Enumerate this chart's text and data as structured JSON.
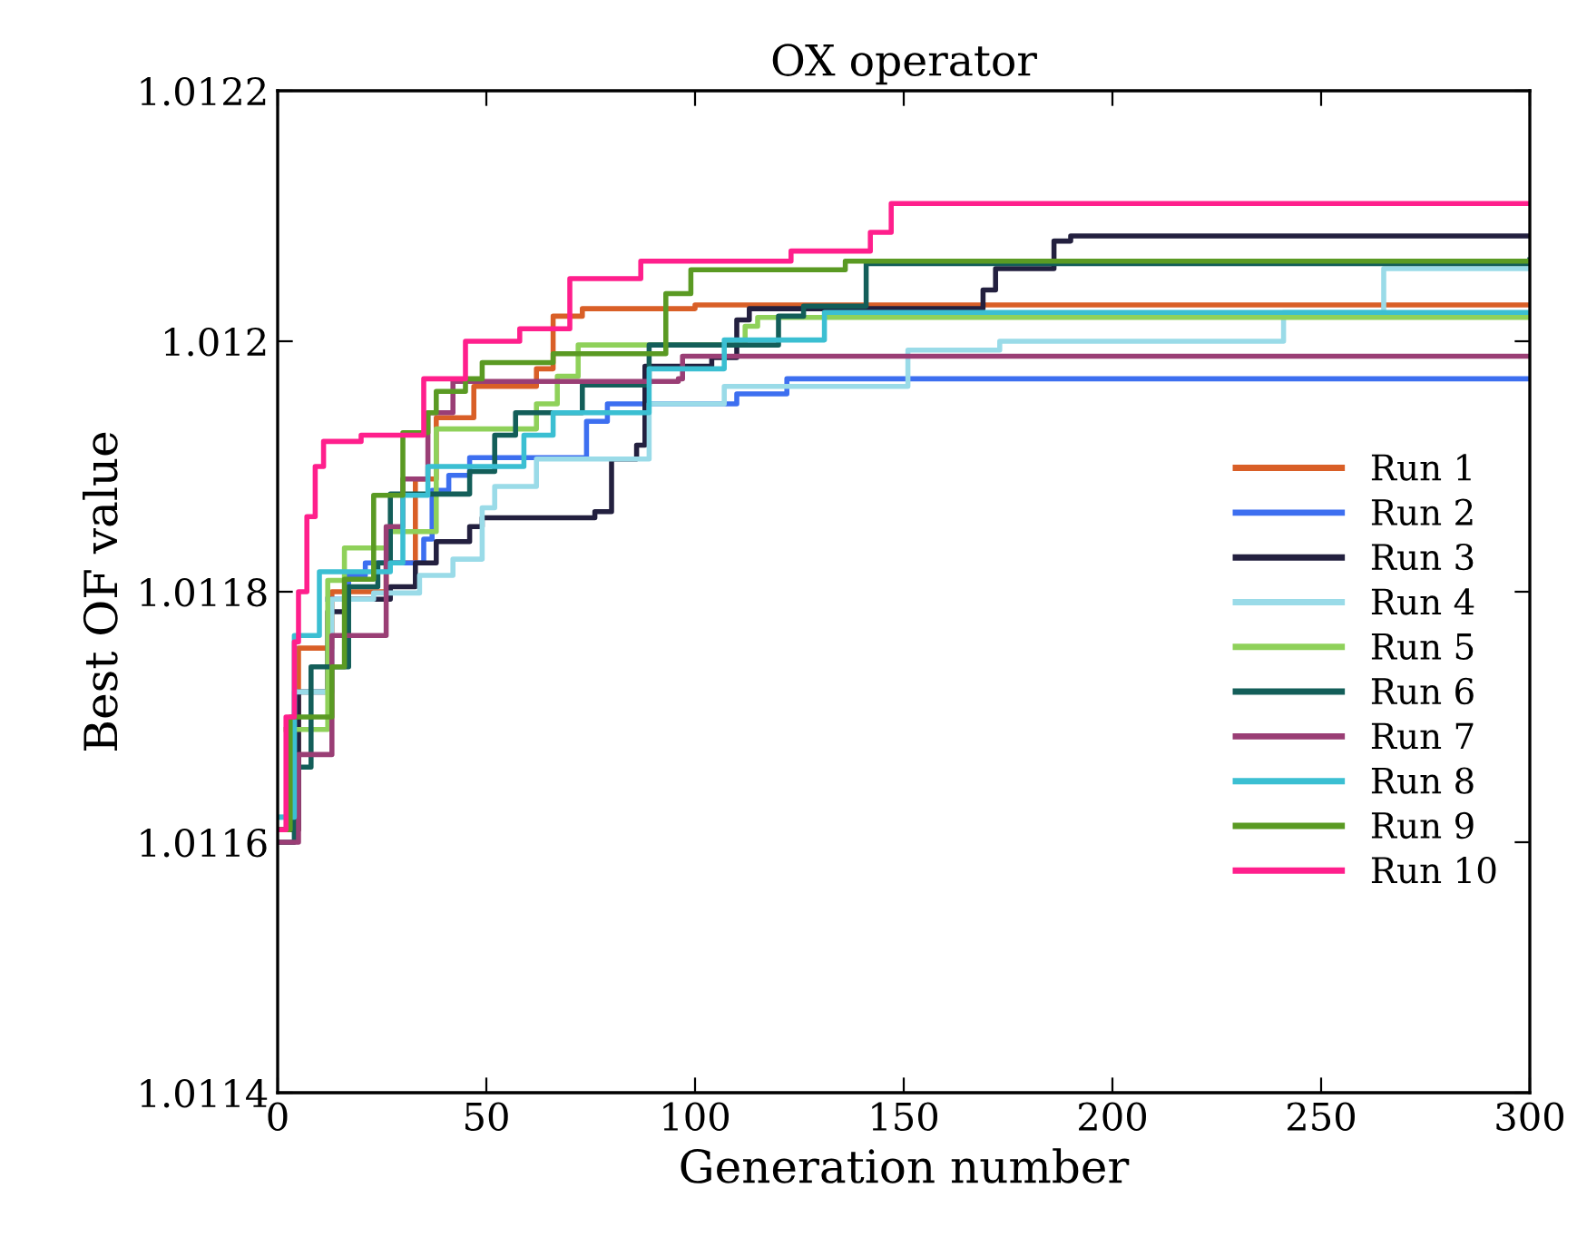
{
  "chart_data": {
    "type": "step",
    "title": "OX operator",
    "xlabel": "Generation number",
    "ylabel": "Best OF value",
    "xlim": [
      0,
      300
    ],
    "xticks": [
      0,
      50,
      100,
      150,
      200,
      250,
      300
    ],
    "ylim": [
      1.0114,
      1.0122
    ],
    "yticks": [
      1.0114,
      1.0116,
      1.0118,
      1.012,
      1.0122
    ],
    "grid": false,
    "legend": "right",
    "line_style": "solid",
    "marker": "none",
    "series": [
      {
        "name": "Run 1",
        "color": "#d95f27",
        "x": [
          0,
          5,
          13,
          26,
          33,
          38,
          47,
          62,
          66,
          73,
          100,
          300
        ],
        "values": [
          1.01161,
          1.011755,
          1.0118,
          1.011823,
          1.01189,
          1.011939,
          1.011964,
          1.011978,
          1.01202,
          1.012026,
          1.012029,
          1.012029
        ]
      },
      {
        "name": "Run 2",
        "color": "#3d6ff0",
        "x": [
          12,
          17,
          21,
          35,
          37,
          41,
          46,
          74,
          79,
          110,
          122,
          300
        ],
        "values": [
          1.011794,
          1.011813,
          1.011823,
          1.011842,
          1.011881,
          1.011893,
          1.011907,
          1.011936,
          1.01195,
          1.011958,
          1.01197,
          1.01197
        ]
      },
      {
        "name": "Run 3",
        "color": "#23203f",
        "x": [
          0,
          5,
          12,
          17,
          27,
          33,
          38,
          46,
          49,
          76,
          80,
          86,
          88,
          104,
          110,
          113,
          169,
          172,
          186,
          190,
          300
        ],
        "values": [
          1.01161,
          1.01172,
          1.011784,
          1.011794,
          1.011804,
          1.011823,
          1.01184,
          1.011852,
          1.011859,
          1.011864,
          1.011906,
          1.011917,
          1.01198,
          1.011987,
          1.012017,
          1.012026,
          1.012041,
          1.012058,
          1.01208,
          1.012084,
          1.012084
        ]
      },
      {
        "name": "Run 4",
        "color": "#9adbe8",
        "x": [
          0,
          4,
          13,
          23,
          34,
          42,
          49,
          52,
          62,
          89,
          107,
          151,
          173,
          241,
          265,
          300
        ],
        "values": [
          1.01162,
          1.01172,
          1.011794,
          1.011799,
          1.011813,
          1.011826,
          1.011867,
          1.011884,
          1.011906,
          1.01195,
          1.011964,
          1.011993,
          1.012,
          1.012023,
          1.012058,
          1.012058
        ]
      },
      {
        "name": "Run 5",
        "color": "#8fd15a",
        "x": [
          2,
          12,
          16,
          27,
          38,
          62,
          67,
          72,
          112,
          115,
          300
        ],
        "values": [
          1.01169,
          1.011809,
          1.011835,
          1.011848,
          1.01193,
          1.01195,
          1.011972,
          1.011997,
          1.012012,
          1.012019,
          1.012019
        ]
      },
      {
        "name": "Run 6",
        "color": "#135e59",
        "x": [
          0,
          4,
          8,
          17,
          24,
          27,
          46,
          52,
          57,
          73,
          89,
          120,
          126,
          141,
          300
        ],
        "values": [
          1.0116,
          1.01166,
          1.01174,
          1.011804,
          1.011823,
          1.011878,
          1.011896,
          1.011925,
          1.011943,
          1.011965,
          1.011997,
          1.01202,
          1.012028,
          1.012062,
          1.012065
        ]
      },
      {
        "name": "Run 7",
        "color": "#9a3e75",
        "x": [
          0,
          5,
          13,
          26,
          30,
          36,
          42,
          96,
          97,
          300
        ],
        "values": [
          1.0116,
          1.01167,
          1.011765,
          1.011852,
          1.01189,
          1.011943,
          1.011968,
          1.01197,
          1.011988,
          1.011988
        ]
      },
      {
        "name": "Run 8",
        "color": "#3bbfd2",
        "x": [
          0,
          4,
          10,
          27,
          30,
          36,
          59,
          66,
          89,
          107,
          131,
          300
        ],
        "values": [
          1.01162,
          1.011765,
          1.011816,
          1.011823,
          1.011877,
          1.0119,
          1.011925,
          1.011943,
          1.011978,
          1.012001,
          1.012023,
          1.012023
        ]
      },
      {
        "name": "Run 9",
        "color": "#5a9a23",
        "x": [
          0,
          3,
          13,
          16,
          23,
          30,
          36,
          38,
          45,
          49,
          66,
          93,
          99,
          136,
          300
        ],
        "values": [
          1.01161,
          1.0117,
          1.01174,
          1.01181,
          1.011877,
          1.011927,
          1.011943,
          1.01196,
          1.01197,
          1.011983,
          1.01199,
          1.012038,
          1.012057,
          1.012064,
          1.012064
        ]
      },
      {
        "name": "Run 10",
        "color": "#ff1f8c",
        "x": [
          0,
          2,
          4,
          5,
          7,
          9,
          11,
          20,
          35,
          45,
          58,
          70,
          87,
          123,
          142,
          147,
          300
        ],
        "values": [
          1.01161,
          1.0117,
          1.01176,
          1.0118,
          1.01186,
          1.0119,
          1.01192,
          1.011925,
          1.01197,
          1.012,
          1.01201,
          1.01205,
          1.012064,
          1.012072,
          1.012087,
          1.01211,
          1.01211
        ]
      }
    ]
  }
}
